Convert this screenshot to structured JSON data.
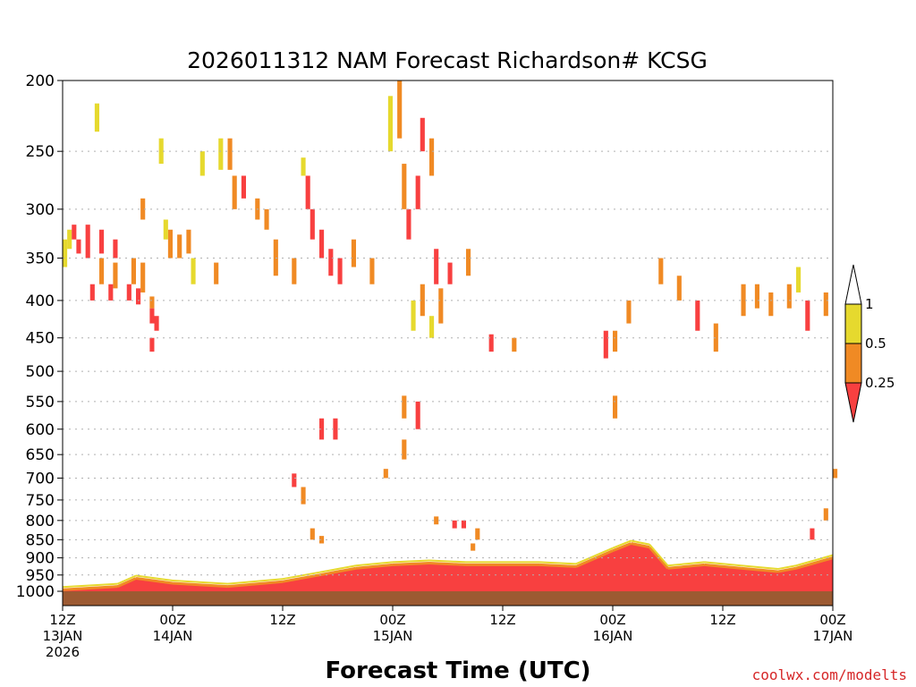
{
  "chart_data": {
    "type": "heatmap",
    "title": "2026011312 NAM Forecast Richardson# KCSG",
    "xlabel": "Forecast Time (UTC)",
    "credit": "coolwx.com/modelts",
    "x_range_hours": [
      0,
      84
    ],
    "y_levels": [
      200,
      250,
      300,
      350,
      400,
      450,
      500,
      550,
      600,
      650,
      700,
      750,
      800,
      850,
      900,
      950,
      1000
    ],
    "y_tick_labels": [
      "200",
      "250",
      "300",
      "350",
      "400",
      "450",
      "500",
      "550",
      "600",
      "650",
      "700",
      "750",
      "800",
      "850",
      "900",
      "950",
      "1000"
    ],
    "x_ticks": [
      {
        "hour": 0,
        "line1": "12Z",
        "line2": "13JAN",
        "line3": "2026"
      },
      {
        "hour": 12,
        "line1": "00Z",
        "line2": "14JAN",
        "line3": ""
      },
      {
        "hour": 24,
        "line1": "12Z",
        "line2": "",
        "line3": ""
      },
      {
        "hour": 36,
        "line1": "00Z",
        "line2": "15JAN",
        "line3": ""
      },
      {
        "hour": 48,
        "line1": "12Z",
        "line2": "",
        "line3": ""
      },
      {
        "hour": 60,
        "line1": "00Z",
        "line2": "16JAN",
        "line3": ""
      },
      {
        "hour": 72,
        "line1": "12Z",
        "line2": "",
        "line3": ""
      },
      {
        "hour": 84,
        "line1": "00Z",
        "line2": "17JAN",
        "line3": ""
      }
    ],
    "colorbar": {
      "levels": [
        "1",
        "0.5",
        "0.25"
      ],
      "classes": [
        {
          "name": "Ri >= 1",
          "color": "#ffffff"
        },
        {
          "name": "0.5 - 1",
          "color": "#e6d92e"
        },
        {
          "name": "0.25 - 0.5",
          "color": "#f08a24"
        },
        {
          "name": "< 0.25",
          "color": "#f84040"
        }
      ]
    },
    "colors": {
      "yellow": "#e6d92e",
      "orange": "#f08a24",
      "red": "#f84040",
      "ground": "#9c5a32",
      "grid": "#b0b0b0"
    },
    "ground_pressure": 1000,
    "cells": [
      {
        "h": 0.0,
        "p1": 330,
        "p2": 350,
        "c": "y"
      },
      {
        "h": 0.0,
        "p1": 350,
        "p2": 360,
        "c": "y"
      },
      {
        "h": 0.5,
        "p1": 320,
        "p2": 340,
        "c": "y"
      },
      {
        "h": 1.0,
        "p1": 315,
        "p2": 330,
        "c": "r"
      },
      {
        "h": 1.5,
        "p1": 330,
        "p2": 345,
        "c": "r"
      },
      {
        "h": 2.5,
        "p1": 315,
        "p2": 350,
        "c": "r"
      },
      {
        "h": 4.0,
        "p1": 320,
        "p2": 345,
        "c": "r"
      },
      {
        "h": 5.5,
        "p1": 330,
        "p2": 350,
        "c": "r"
      },
      {
        "h": 4.0,
        "p1": 350,
        "p2": 380,
        "c": "o"
      },
      {
        "h": 5.5,
        "p1": 355,
        "p2": 385,
        "c": "o"
      },
      {
        "h": 7.5,
        "p1": 350,
        "p2": 380,
        "c": "o"
      },
      {
        "h": 8.5,
        "p1": 355,
        "p2": 390,
        "c": "o"
      },
      {
        "h": 3.0,
        "p1": 380,
        "p2": 400,
        "c": "r"
      },
      {
        "h": 5.0,
        "p1": 380,
        "p2": 400,
        "c": "r"
      },
      {
        "h": 7.0,
        "p1": 380,
        "p2": 400,
        "c": "r"
      },
      {
        "h": 8.0,
        "p1": 385,
        "p2": 405,
        "c": "r"
      },
      {
        "h": 9.5,
        "p1": 395,
        "p2": 410,
        "c": "o"
      },
      {
        "h": 9.5,
        "p1": 410,
        "p2": 430,
        "c": "r"
      },
      {
        "h": 10.0,
        "p1": 420,
        "p2": 440,
        "c": "r"
      },
      {
        "h": 9.5,
        "p1": 450,
        "p2": 470,
        "c": "r"
      },
      {
        "h": 3.5,
        "p1": 215,
        "p2": 235,
        "c": "y"
      },
      {
        "h": 8.5,
        "p1": 290,
        "p2": 310,
        "c": "o"
      },
      {
        "h": 11.5,
        "p1": 320,
        "p2": 350,
        "c": "o"
      },
      {
        "h": 12.5,
        "p1": 325,
        "p2": 350,
        "c": "o"
      },
      {
        "h": 13.5,
        "p1": 320,
        "p2": 345,
        "c": "o"
      },
      {
        "h": 11.0,
        "p1": 310,
        "p2": 330,
        "c": "y"
      },
      {
        "h": 14.0,
        "p1": 350,
        "p2": 380,
        "c": "y"
      },
      {
        "h": 16.5,
        "p1": 355,
        "p2": 380,
        "c": "o"
      },
      {
        "h": 10.5,
        "p1": 240,
        "p2": 260,
        "c": "y"
      },
      {
        "h": 15.0,
        "p1": 250,
        "p2": 270,
        "c": "y"
      },
      {
        "h": 17.0,
        "p1": 240,
        "p2": 265,
        "c": "y"
      },
      {
        "h": 18.0,
        "p1": 240,
        "p2": 265,
        "c": "o"
      },
      {
        "h": 18.5,
        "p1": 270,
        "p2": 300,
        "c": "o"
      },
      {
        "h": 19.5,
        "p1": 270,
        "p2": 290,
        "c": "r"
      },
      {
        "h": 21.0,
        "p1": 290,
        "p2": 310,
        "c": "o"
      },
      {
        "h": 22.0,
        "p1": 300,
        "p2": 320,
        "c": "o"
      },
      {
        "h": 23.0,
        "p1": 330,
        "p2": 370,
        "c": "o"
      },
      {
        "h": 25.0,
        "p1": 350,
        "p2": 380,
        "c": "o"
      },
      {
        "h": 26.5,
        "p1": 270,
        "p2": 300,
        "c": "r"
      },
      {
        "h": 27.0,
        "p1": 300,
        "p2": 330,
        "c": "r"
      },
      {
        "h": 28.0,
        "p1": 320,
        "p2": 350,
        "c": "r"
      },
      {
        "h": 29.0,
        "p1": 340,
        "p2": 370,
        "c": "r"
      },
      {
        "h": 30.0,
        "p1": 350,
        "p2": 380,
        "c": "r"
      },
      {
        "h": 26.0,
        "p1": 255,
        "p2": 270,
        "c": "y"
      },
      {
        "h": 31.5,
        "p1": 330,
        "p2": 360,
        "c": "o"
      },
      {
        "h": 33.5,
        "p1": 350,
        "p2": 380,
        "c": "o"
      },
      {
        "h": 35.5,
        "p1": 210,
        "p2": 250,
        "c": "y"
      },
      {
        "h": 36.5,
        "p1": 200,
        "p2": 240,
        "c": "o"
      },
      {
        "h": 37.0,
        "p1": 260,
        "p2": 300,
        "c": "o"
      },
      {
        "h": 38.5,
        "p1": 270,
        "p2": 300,
        "c": "r"
      },
      {
        "h": 39.0,
        "p1": 225,
        "p2": 250,
        "c": "r"
      },
      {
        "h": 40.0,
        "p1": 240,
        "p2": 270,
        "c": "o"
      },
      {
        "h": 37.5,
        "p1": 300,
        "p2": 330,
        "c": "r"
      },
      {
        "h": 40.5,
        "p1": 340,
        "p2": 380,
        "c": "r"
      },
      {
        "h": 42.0,
        "p1": 355,
        "p2": 380,
        "c": "r"
      },
      {
        "h": 39.0,
        "p1": 380,
        "p2": 420,
        "c": "o"
      },
      {
        "h": 41.0,
        "p1": 385,
        "p2": 430,
        "c": "o"
      },
      {
        "h": 44.0,
        "p1": 340,
        "p2": 370,
        "c": "o"
      },
      {
        "h": 38.0,
        "p1": 400,
        "p2": 440,
        "c": "y"
      },
      {
        "h": 40.0,
        "p1": 420,
        "p2": 450,
        "c": "y"
      },
      {
        "h": 46.5,
        "p1": 445,
        "p2": 470,
        "c": "r"
      },
      {
        "h": 49.0,
        "p1": 450,
        "p2": 470,
        "c": "o"
      },
      {
        "h": 59.0,
        "p1": 440,
        "p2": 480,
        "c": "r"
      },
      {
        "h": 60.0,
        "p1": 440,
        "p2": 470,
        "c": "o"
      },
      {
        "h": 61.5,
        "p1": 400,
        "p2": 430,
        "c": "o"
      },
      {
        "h": 65.0,
        "p1": 350,
        "p2": 380,
        "c": "o"
      },
      {
        "h": 67.0,
        "p1": 370,
        "p2": 400,
        "c": "o"
      },
      {
        "h": 69.0,
        "p1": 400,
        "p2": 440,
        "c": "r"
      },
      {
        "h": 71.0,
        "p1": 430,
        "p2": 470,
        "c": "o"
      },
      {
        "h": 74.0,
        "p1": 380,
        "p2": 420,
        "c": "o"
      },
      {
        "h": 75.5,
        "p1": 380,
        "p2": 410,
        "c": "o"
      },
      {
        "h": 77.0,
        "p1": 390,
        "p2": 420,
        "c": "o"
      },
      {
        "h": 79.0,
        "p1": 380,
        "p2": 410,
        "c": "o"
      },
      {
        "h": 81.0,
        "p1": 400,
        "p2": 440,
        "c": "r"
      },
      {
        "h": 83.0,
        "p1": 390,
        "p2": 420,
        "c": "o"
      },
      {
        "h": 80.0,
        "p1": 360,
        "p2": 390,
        "c": "y"
      },
      {
        "h": 37.0,
        "p1": 540,
        "p2": 580,
        "c": "o"
      },
      {
        "h": 38.5,
        "p1": 550,
        "p2": 600,
        "c": "r"
      },
      {
        "h": 28.0,
        "p1": 580,
        "p2": 620,
        "c": "r"
      },
      {
        "h": 29.5,
        "p1": 580,
        "p2": 620,
        "c": "r"
      },
      {
        "h": 37.0,
        "p1": 620,
        "p2": 660,
        "c": "o"
      },
      {
        "h": 60.0,
        "p1": 540,
        "p2": 580,
        "c": "o"
      },
      {
        "h": 42.5,
        "p1": 800,
        "p2": 820,
        "c": "r"
      },
      {
        "h": 43.5,
        "p1": 800,
        "p2": 820,
        "c": "r"
      },
      {
        "h": 45.0,
        "p1": 820,
        "p2": 850,
        "c": "o"
      },
      {
        "h": 44.5,
        "p1": 860,
        "p2": 880,
        "c": "o"
      },
      {
        "h": 81.5,
        "p1": 820,
        "p2": 850,
        "c": "r"
      },
      {
        "h": 83.0,
        "p1": 770,
        "p2": 800,
        "c": "o"
      },
      {
        "h": 25.0,
        "p1": 690,
        "p2": 720,
        "c": "r"
      },
      {
        "h": 26.0,
        "p1": 720,
        "p2": 760,
        "c": "o"
      },
      {
        "h": 27.0,
        "p1": 820,
        "p2": 850,
        "c": "o"
      },
      {
        "h": 28.0,
        "p1": 840,
        "p2": 860,
        "c": "o"
      },
      {
        "h": 35.0,
        "p1": 680,
        "p2": 700,
        "c": "o"
      },
      {
        "h": 40.5,
        "p1": 790,
        "p2": 810,
        "c": "o"
      },
      {
        "h": 84.0,
        "p1": 680,
        "p2": 700,
        "c": "o"
      }
    ],
    "boundary_layer": {
      "hours": [
        0,
        6,
        8,
        12,
        18,
        24,
        28,
        32,
        36,
        40,
        44,
        48,
        52,
        56,
        60,
        62,
        64,
        66,
        70,
        74,
        78,
        80,
        84
      ],
      "top_pressure": [
        995,
        985,
        960,
        975,
        985,
        970,
        950,
        930,
        920,
        915,
        920,
        920,
        920,
        925,
        880,
        860,
        870,
        930,
        920,
        930,
        940,
        930,
        900
      ]
    }
  }
}
